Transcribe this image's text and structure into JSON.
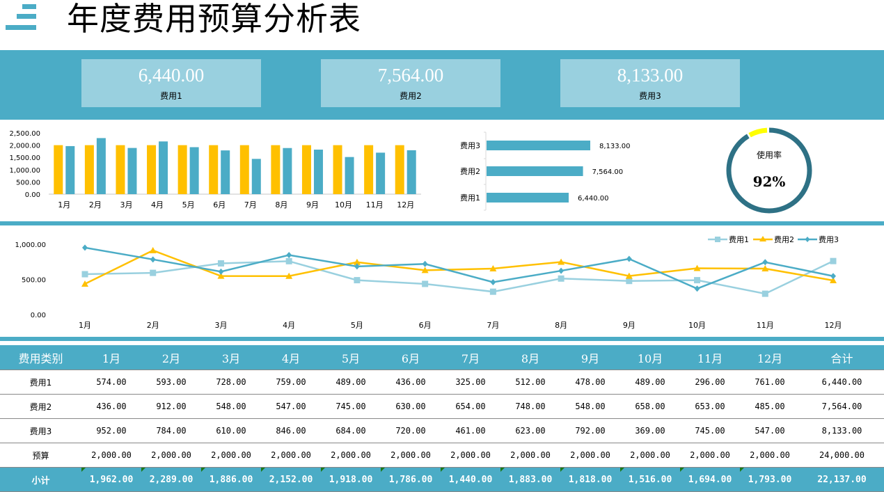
{
  "header": {
    "title": "年度费用预算分析表",
    "icon": "menu-bars-icon"
  },
  "kpis": [
    {
      "value": "6,440.00",
      "label": "费用1"
    },
    {
      "value": "7,564.00",
      "label": "费用2"
    },
    {
      "value": "8,133.00",
      "label": "费用3"
    }
  ],
  "gauge": {
    "label": "使用率",
    "value_text": "92%",
    "value": 0.92,
    "track_color": "#2e7185",
    "remaining_color": "#ffff00"
  },
  "colors": {
    "accent": "#4bacc6",
    "light": "#99d0df",
    "yellow": "#ffc000"
  },
  "chart_data": [
    {
      "type": "bar",
      "title": "",
      "categories": [
        "1月",
        "2月",
        "3月",
        "4月",
        "5月",
        "6月",
        "7月",
        "8月",
        "9月",
        "10月",
        "11月",
        "12月"
      ],
      "series": [
        {
          "name": "预算",
          "color": "#ffc000",
          "values": [
            2000,
            2000,
            2000,
            2000,
            2000,
            2000,
            2000,
            2000,
            2000,
            2000,
            2000,
            2000
          ]
        },
        {
          "name": "小计",
          "color": "#4bacc6",
          "values": [
            1962,
            2289,
            1886,
            2152,
            1918,
            1786,
            1440,
            1883,
            1818,
            1516,
            1694,
            1793
          ]
        }
      ],
      "ylim": [
        0,
        2500
      ],
      "yticks": [
        "0.00",
        "500.00",
        "1,000.00",
        "1,500.00",
        "2,000.00",
        "2,500.00"
      ],
      "ytick_values": [
        0,
        500,
        1000,
        1500,
        2000,
        2500
      ]
    },
    {
      "type": "bar",
      "orientation": "horizontal",
      "categories": [
        "费用1",
        "费用2",
        "费用3"
      ],
      "values": [
        6440,
        7564,
        8133
      ],
      "labels": [
        "6,440.00",
        "7,564.00",
        "8,133.00"
      ],
      "xlim": [
        0,
        10000
      ],
      "color": "#4bacc6"
    },
    {
      "type": "line",
      "categories": [
        "1月",
        "2月",
        "3月",
        "4月",
        "5月",
        "6月",
        "7月",
        "8月",
        "9月",
        "10月",
        "11月",
        "12月"
      ],
      "series": [
        {
          "name": "费用1",
          "color": "#99d0df",
          "marker": "square",
          "values": [
            574,
            593,
            728,
            759,
            489,
            436,
            325,
            512,
            478,
            489,
            296,
            761
          ]
        },
        {
          "name": "费用2",
          "color": "#ffc000",
          "marker": "triangle",
          "values": [
            436,
            912,
            548,
            547,
            745,
            630,
            654,
            748,
            548,
            658,
            653,
            485
          ]
        },
        {
          "name": "费用3",
          "color": "#4bacc6",
          "marker": "diamond",
          "values": [
            952,
            784,
            610,
            846,
            684,
            720,
            461,
            623,
            792,
            369,
            745,
            547
          ]
        }
      ],
      "ylim": [
        0,
        1000
      ],
      "yticks": [
        "0.00",
        "500.00",
        "1,000.00"
      ],
      "ytick_values": [
        0,
        500,
        1000
      ],
      "legend": "top-right"
    }
  ],
  "table": {
    "headers": [
      "费用类别",
      "1月",
      "2月",
      "3月",
      "4月",
      "5月",
      "6月",
      "7月",
      "8月",
      "9月",
      "10月",
      "11月",
      "12月",
      "合计"
    ],
    "rows": [
      [
        "费用1",
        "574.00",
        "593.00",
        "728.00",
        "759.00",
        "489.00",
        "436.00",
        "325.00",
        "512.00",
        "478.00",
        "489.00",
        "296.00",
        "761.00",
        "6,440.00"
      ],
      [
        "费用2",
        "436.00",
        "912.00",
        "548.00",
        "547.00",
        "745.00",
        "630.00",
        "654.00",
        "748.00",
        "548.00",
        "658.00",
        "653.00",
        "485.00",
        "7,564.00"
      ],
      [
        "费用3",
        "952.00",
        "784.00",
        "610.00",
        "846.00",
        "684.00",
        "720.00",
        "461.00",
        "623.00",
        "792.00",
        "369.00",
        "745.00",
        "547.00",
        "8,133.00"
      ],
      [
        "预算",
        "2,000.00",
        "2,000.00",
        "2,000.00",
        "2,000.00",
        "2,000.00",
        "2,000.00",
        "2,000.00",
        "2,000.00",
        "2,000.00",
        "2,000.00",
        "2,000.00",
        "2,000.00",
        "24,000.00"
      ]
    ],
    "subtotal": [
      "小计",
      "1,962.00",
      "2,289.00",
      "1,886.00",
      "2,152.00",
      "1,918.00",
      "1,786.00",
      "1,440.00",
      "1,883.00",
      "1,818.00",
      "1,516.00",
      "1,694.00",
      "1,793.00",
      "22,137.00"
    ]
  }
}
